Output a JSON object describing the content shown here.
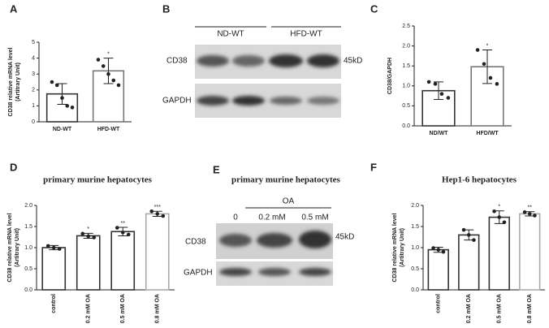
{
  "panel_labels": [
    "A",
    "B",
    "C",
    "D",
    "E",
    "F"
  ],
  "blots": [
    {
      "groups": [
        "ND-WT",
        "HFD-WT"
      ],
      "rows": [
        "CD38",
        "GAPDH"
      ],
      "size": "45kD"
    },
    {
      "title": "primary murine hepatocytes",
      "group": "OA",
      "lanes": [
        "0",
        "0.2 mM",
        "0.5 mM"
      ],
      "rows": [
        "CD38",
        "GAPDH"
      ],
      "size": "45kD"
    }
  ],
  "chart_data": [
    {
      "type": "bar",
      "ylabel": "CD38 relative mRNA level",
      "ylabel2": "(Artitrary Unit)",
      "categories": [
        "ND-WT",
        "HFD-WT"
      ],
      "values": [
        1.75,
        3.2
      ],
      "errors": [
        0.65,
        0.8
      ],
      "points": [
        [
          2.5,
          2.3,
          1.5,
          1.0,
          0.9
        ],
        [
          3.9,
          3.5,
          3.0,
          2.6,
          2.3
        ]
      ],
      "annotations": [
        null,
        "*"
      ],
      "bar_colors": [
        "#333333",
        "#777777"
      ],
      "ylim": [
        0,
        5
      ],
      "yticks": [
        0,
        1,
        2,
        3,
        4,
        5
      ]
    },
    {
      "type": "bar",
      "ylabel": "CD38/GAPDH",
      "categories": [
        "ND/WT",
        "HFD/WT"
      ],
      "values": [
        0.88,
        1.48
      ],
      "errors": [
        0.22,
        0.42
      ],
      "points": [
        [
          1.1,
          1.05,
          0.8,
          0.7
        ],
        [
          1.9,
          1.55,
          1.2,
          1.05
        ]
      ],
      "annotations": [
        null,
        "*"
      ],
      "bar_colors": [
        "#333333",
        "#777777"
      ],
      "ylim": [
        0,
        2.5
      ],
      "yticks": [
        {
          "value": 0,
          "label": "0.0"
        },
        0.5,
        {
          "value": 1,
          "label": "1.0"
        },
        1.5,
        {
          "value": 2,
          "label": "2.0"
        },
        2.5
      ]
    },
    {
      "type": "bar",
      "title": "primary murine hepatocytes",
      "ylabel": "CD38 relative mRNA level",
      "ylabel2": "(Artitrary Unit)",
      "categories": [
        "control",
        "0.2 mM OA",
        "0.5 mM OA",
        "0.8 mM OA"
      ],
      "values": [
        1.0,
        1.28,
        1.38,
        1.8
      ],
      "errors": [
        0.05,
        0.06,
        0.1,
        0.06
      ],
      "points": [
        [
          1.04,
          1.0,
          0.97
        ],
        [
          1.33,
          1.27,
          1.24
        ],
        [
          1.47,
          1.36,
          1.31
        ],
        [
          1.86,
          1.8,
          1.75
        ]
      ],
      "annotations": [
        null,
        "*",
        "**",
        "***"
      ],
      "bar_colors": [
        "#333333",
        "#333333",
        "#333333",
        "#aaaaaa"
      ],
      "ylim": [
        0,
        2
      ],
      "yticks": [
        {
          "value": 0,
          "label": "0.0"
        },
        0.5,
        {
          "value": 1,
          "label": "1.0"
        },
        1.5,
        {
          "value": 2,
          "label": "2.0"
        }
      ]
    },
    {
      "type": "bar",
      "title": "Hep1-6 hepatocytes",
      "ylabel": "CD38 relative mRNA level",
      "ylabel2": "(Artitrary Unit)",
      "categories": [
        "control",
        "0.2 mM OA",
        "0.5 mM OA",
        "0.8 mM OA"
      ],
      "values": [
        0.95,
        1.3,
        1.72,
        1.8
      ],
      "errors": [
        0.06,
        0.12,
        0.15,
        0.05
      ],
      "points": [
        [
          0.99,
          0.95,
          0.9
        ],
        [
          1.42,
          1.3,
          1.18
        ],
        [
          1.86,
          1.72,
          1.6
        ],
        [
          1.84,
          1.8,
          1.76
        ]
      ],
      "annotations": [
        null,
        null,
        "*",
        "**"
      ],
      "bar_colors": [
        "#333333",
        "#333333",
        "#333333",
        "#aaaaaa"
      ],
      "ylim": [
        0,
        2
      ],
      "yticks": [
        {
          "value": 0,
          "label": "0.0"
        },
        0.5,
        {
          "value": 1,
          "label": "1.0"
        },
        1.5,
        {
          "value": 2,
          "label": "2.0"
        }
      ]
    }
  ]
}
